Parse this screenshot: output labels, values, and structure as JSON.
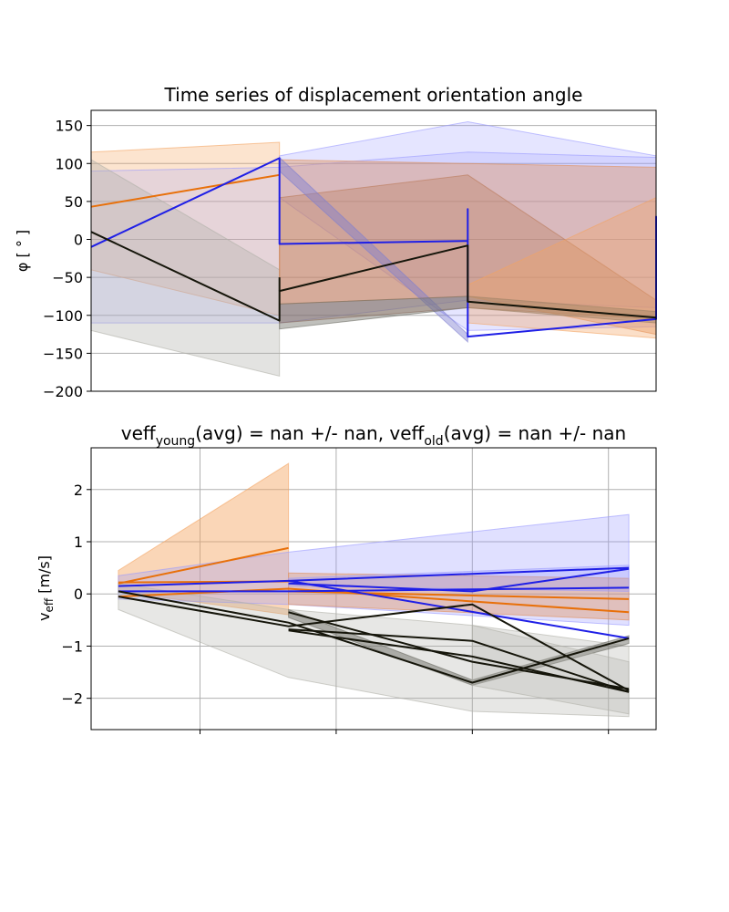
{
  "chart_data": [
    {
      "type": "line",
      "title": "Time series of displacement orientation angle",
      "ylabel": "φ [ ° ]",
      "xlabel": "",
      "xlim": [
        0,
        3
      ],
      "ylim": [
        -200,
        170
      ],
      "yticks": [
        150,
        100,
        50,
        0,
        -50,
        -100,
        -150,
        -200
      ],
      "grid": true,
      "colors": {
        "orange": "#e8700a",
        "blue": "#1f1fe6",
        "black": "#15150a"
      },
      "bands": [
        {
          "color": "#f4a460",
          "opacity": 0.3,
          "x": [
            0,
            1,
            1,
            0
          ],
          "y": [
            115,
            128,
            -100,
            -40
          ]
        },
        {
          "color": "#9999ff",
          "opacity": 0.22,
          "x": [
            0,
            1,
            2,
            3,
            3,
            2,
            1,
            0
          ],
          "y": [
            90,
            95,
            115,
            108,
            -90,
            -80,
            -110,
            -110
          ]
        },
        {
          "color": "#b0b0a8",
          "opacity": 0.35,
          "x": [
            0,
            1,
            1,
            0
          ],
          "y": [
            105,
            -40,
            -180,
            -120
          ]
        },
        {
          "color": "#9999ff",
          "opacity": 0.25,
          "x": [
            1,
            2,
            3,
            3,
            2,
            1
          ],
          "y": [
            110,
            155,
            110,
            -115,
            -120,
            55
          ]
        },
        {
          "color": "#a06a5a",
          "opacity": 0.35,
          "x": [
            1,
            2,
            3,
            3,
            2,
            1
          ],
          "y": [
            55,
            85,
            -80,
            -105,
            -90,
            -110
          ]
        },
        {
          "color": "#e0905a",
          "opacity": 0.4,
          "x": [
            1,
            2,
            3,
            3,
            2,
            1
          ],
          "y": [
            105,
            100,
            95,
            -125,
            -75,
            -85
          ]
        },
        {
          "color": "#7f7fd0",
          "opacity": 0.45,
          "x": [
            1,
            2,
            2,
            1
          ],
          "y": [
            108,
            -125,
            -135,
            90
          ]
        },
        {
          "color": "#707068",
          "opacity": 0.45,
          "x": [
            1,
            2,
            3,
            3,
            2,
            1
          ],
          "y": [
            -85,
            -75,
            -95,
            -110,
            -90,
            -118
          ]
        },
        {
          "color": "#f4a460",
          "opacity": 0.35,
          "x": [
            2,
            3,
            3,
            2
          ],
          "y": [
            -60,
            55,
            -130,
            -110
          ]
        }
      ],
      "series": [
        {
          "color": "#e8700a",
          "x": [
            0,
            1
          ],
          "y": [
            43,
            85
          ]
        },
        {
          "color": "#1f1fe6",
          "x": [
            0,
            1,
            1,
            2,
            2,
            2,
            3,
            3,
            3
          ],
          "y": [
            -10,
            107,
            -6,
            -2,
            40,
            -128,
            -105,
            30,
            -105
          ]
        },
        {
          "color": "#15150a",
          "x": [
            0,
            1,
            1,
            2,
            2,
            3,
            3
          ],
          "y": [
            10,
            -107,
            -68,
            -8,
            -82,
            -103,
            -103
          ]
        },
        {
          "color": "#15150a",
          "x": [
            1,
            1
          ],
          "y": [
            -50,
            -68
          ]
        }
      ]
    },
    {
      "type": "line",
      "title_parts": [
        "veff",
        "young",
        "(avg) = nan +/- nan, veff",
        "old",
        "(avg) = nan +/- nan"
      ],
      "ylabel_parts": [
        "v",
        "eff",
        " [m/s]"
      ],
      "xlabel": "",
      "xlim": [
        -0.8,
        3.35
      ],
      "ylim": [
        -2.6,
        2.8
      ],
      "yticks": [
        2,
        1,
        0,
        -1,
        -2
      ],
      "ytick_labels": [
        "2",
        "1",
        "0",
        "−1",
        "−2"
      ],
      "xgrid": [
        0,
        1,
        2,
        3
      ],
      "grid": true,
      "bands": [
        {
          "color": "#f4a460",
          "opacity": 0.45,
          "x": [
            -0.6,
            0.65,
            0.65,
            -0.6
          ],
          "y": [
            0.45,
            2.5,
            -0.4,
            0.05
          ]
        },
        {
          "color": "#9999ff",
          "opacity": 0.3,
          "x": [
            -0.6,
            0.65,
            3.15,
            3.15,
            0.65,
            -0.6
          ],
          "y": [
            0.35,
            0.8,
            1.52,
            -0.6,
            -0.2,
            -0.1
          ]
        },
        {
          "color": "#b0b0a8",
          "opacity": 0.3,
          "x": [
            -0.6,
            0.65,
            2.0,
            3.15,
            3.15,
            2.0,
            0.65,
            -0.6
          ],
          "y": [
            0.2,
            -0.3,
            -0.6,
            -1.0,
            -2.35,
            -2.25,
            -1.6,
            -0.3
          ]
        },
        {
          "color": "#e0905a",
          "opacity": 0.4,
          "x": [
            0.65,
            3.15,
            3.15,
            0.65
          ],
          "y": [
            0.4,
            0.3,
            -0.5,
            -0.2
          ]
        },
        {
          "color": "#9999ff",
          "opacity": 0.3,
          "x": [
            0.65,
            3.15,
            3.15,
            0.65
          ],
          "y": [
            0.3,
            0.55,
            0.05,
            0.15
          ]
        },
        {
          "color": "#707068",
          "opacity": 0.5,
          "x": [
            0.65,
            2.0,
            3.15,
            3.15,
            2.0,
            0.65
          ],
          "y": [
            -0.3,
            -1.65,
            -0.8,
            -0.95,
            -1.75,
            -0.45
          ]
        },
        {
          "color": "#b0b0a8",
          "opacity": 0.3,
          "x": [
            2.0,
            3.15,
            3.15,
            2.0
          ],
          "y": [
            -0.6,
            -1.3,
            -2.3,
            -1.75
          ]
        }
      ],
      "series": [
        {
          "color": "#e8700a",
          "x": [
            -0.6,
            0.65
          ],
          "y": [
            0.2,
            0.88
          ]
        },
        {
          "color": "#e8700a",
          "x": [
            -0.6,
            0.65
          ],
          "y": [
            0.22,
            0.24
          ]
        },
        {
          "color": "#e8700a",
          "x": [
            -0.6,
            0.65,
            3.15
          ],
          "y": [
            -0.05,
            0.1,
            -0.35
          ]
        },
        {
          "color": "#e8700a",
          "x": [
            0.65,
            3.15
          ],
          "y": [
            0.05,
            -0.1
          ]
        },
        {
          "color": "#1f1fe6",
          "x": [
            -0.6,
            0.65,
            3.15
          ],
          "y": [
            0.15,
            0.25,
            0.5
          ]
        },
        {
          "color": "#1f1fe6",
          "x": [
            -0.6,
            0.65,
            3.15
          ],
          "y": [
            0.05,
            0.05,
            0.12
          ]
        },
        {
          "color": "#1f1fe6",
          "x": [
            0.65,
            3.15
          ],
          "y": [
            0.25,
            -0.85
          ]
        },
        {
          "color": "#1f1fe6",
          "x": [
            0.65,
            2.0,
            3.15
          ],
          "y": [
            0.2,
            0.05,
            0.48
          ]
        },
        {
          "color": "#15150a",
          "x": [
            -0.6,
            0.65,
            2.0,
            3.15
          ],
          "y": [
            0.05,
            -0.55,
            -1.7,
            -0.85
          ]
        },
        {
          "color": "#15150a",
          "x": [
            -0.6,
            0.65,
            2.0,
            3.15
          ],
          "y": [
            -0.05,
            -0.62,
            -0.2,
            -1.85
          ]
        },
        {
          "color": "#15150a",
          "x": [
            0.65,
            2.0,
            3.15
          ],
          "y": [
            -0.35,
            -1.3,
            -1.82
          ]
        },
        {
          "color": "#15150a",
          "x": [
            0.65,
            2.0,
            3.15
          ],
          "y": [
            -0.68,
            -0.9,
            -1.88
          ]
        },
        {
          "color": "#15150a",
          "x": [
            0.65,
            2.0,
            3.15
          ],
          "y": [
            -0.7,
            -1.2,
            -1.88
          ]
        }
      ]
    }
  ]
}
